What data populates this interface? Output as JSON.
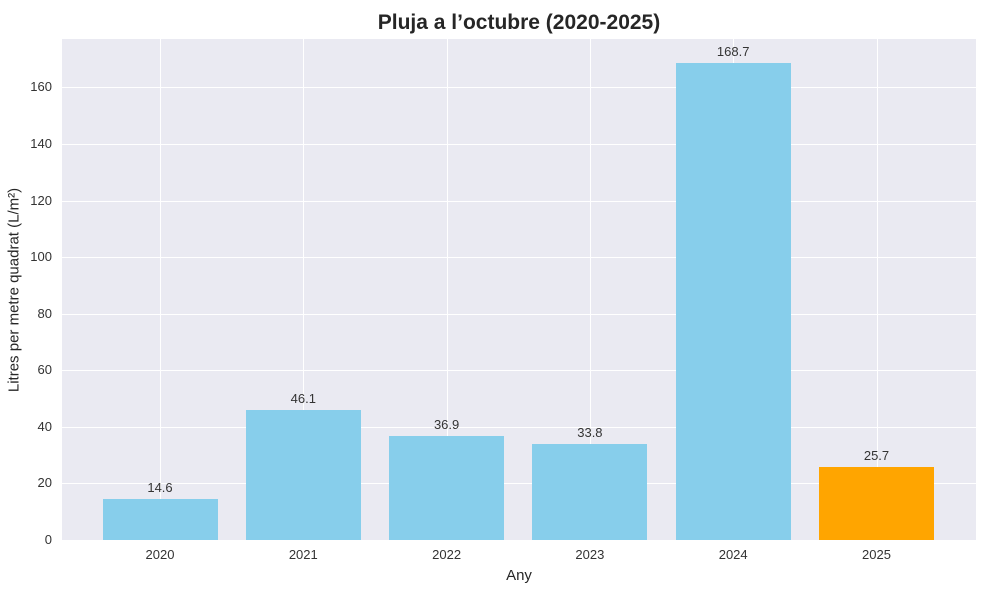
{
  "chart_data": {
    "type": "bar",
    "title": "Pluja a l’octubre (2020-2025)",
    "xlabel": "Any",
    "ylabel": "Litres per metre quadrat (L/m²)",
    "categories": [
      "2020",
      "2021",
      "2022",
      "2023",
      "2024",
      "2025"
    ],
    "values": [
      14.6,
      46.1,
      36.9,
      33.8,
      168.7,
      25.7
    ],
    "value_labels": [
      "14.6",
      "46.1",
      "36.9",
      "33.8",
      "168.7",
      "25.7"
    ],
    "bar_colors": [
      "#87ceeb",
      "#87ceeb",
      "#87ceeb",
      "#87ceeb",
      "#87ceeb",
      "#ffa500"
    ],
    "yticks": [
      0,
      20,
      40,
      60,
      80,
      100,
      120,
      140,
      160
    ],
    "ylim": [
      0,
      177.1
    ],
    "grid": true,
    "background": "#eaeaf2",
    "legend": null
  }
}
